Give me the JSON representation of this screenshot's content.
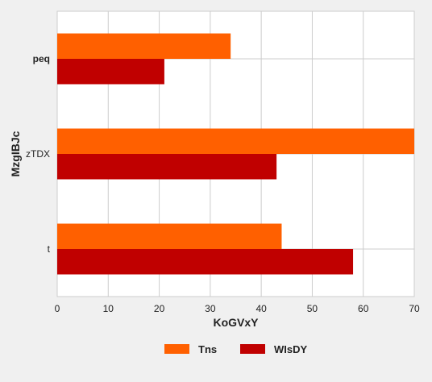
{
  "chart_data": {
    "type": "bar",
    "orientation": "horizontal",
    "categories": [
      "peq",
      "zTDX",
      "t"
    ],
    "category_bold": [
      true,
      false,
      false
    ],
    "series": [
      {
        "name": "Tns",
        "color": "#ff6000",
        "values": [
          34,
          70,
          44
        ]
      },
      {
        "name": "WIsDY",
        "color": "#c00000",
        "values": [
          21,
          43,
          58
        ]
      }
    ],
    "xlabel": "KoGVxY",
    "ylabel": "MzgIBJc",
    "xlim": [
      0,
      70
    ],
    "xticks": [
      0,
      10,
      20,
      30,
      40,
      50,
      60,
      70
    ],
    "grid": true,
    "legend_position": "bottom"
  }
}
